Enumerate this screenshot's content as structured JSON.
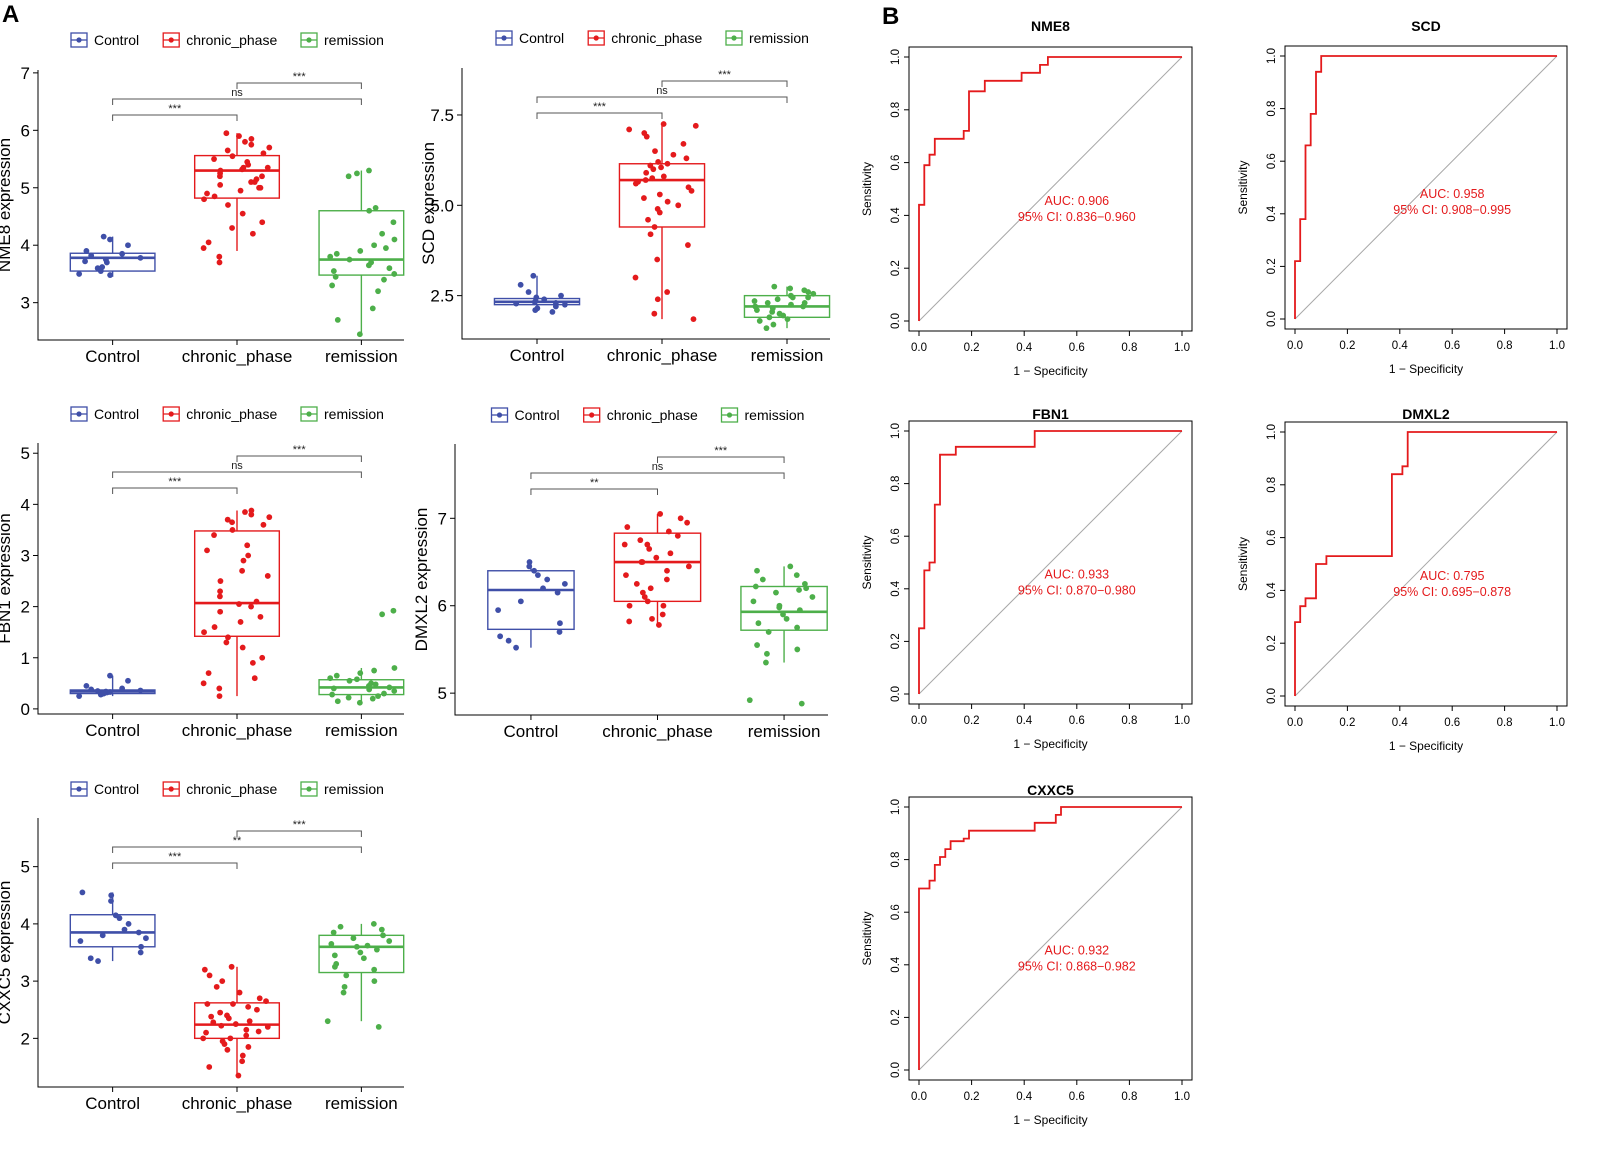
{
  "panel_labels": {
    "a": "A",
    "b": "B"
  },
  "colors": {
    "Control": "#3F4FA8",
    "chronic_phase": "#E41A1C",
    "remission": "#4DAF4A",
    "roc": "#E41A1C",
    "diag": "#A8A8A8",
    "axis": "#000000"
  },
  "chart_data": [
    {
      "type": "box",
      "id": "nme8",
      "ylabel": "NME8 expression",
      "categories": [
        "Control",
        "chronic_phase",
        "remission"
      ],
      "legend": [
        "Control",
        "chronic_phase",
        "remission"
      ],
      "ylim": [
        2.35,
        7.05
      ],
      "yticks": [
        3,
        4,
        5,
        6,
        7
      ],
      "boxes": [
        {
          "q1": 3.55,
          "median": 3.78,
          "q3": 3.86,
          "lo": 3.45,
          "hi": 4.15
        },
        {
          "q1": 4.82,
          "median": 5.3,
          "q3": 5.56,
          "lo": 3.9,
          "hi": 5.95
        },
        {
          "q1": 3.48,
          "median": 3.75,
          "q3": 4.6,
          "lo": 2.45,
          "hi": 5.3
        }
      ],
      "points": [
        [
          3.5,
          3.55,
          3.62,
          3.7,
          3.75,
          3.78,
          3.82,
          3.85,
          3.9,
          4.0,
          4.1,
          4.15,
          3.48,
          3.6,
          3.72
        ],
        [
          3.7,
          3.8,
          3.95,
          4.05,
          4.2,
          4.4,
          4.55,
          4.7,
          4.8,
          4.85,
          4.95,
          5.0,
          5.05,
          5.1,
          5.15,
          5.2,
          5.25,
          5.3,
          5.32,
          5.35,
          5.4,
          5.45,
          5.5,
          5.55,
          5.6,
          5.65,
          5.7,
          5.75,
          5.8,
          5.85,
          5.9,
          5.95,
          4.9,
          5.1,
          5.35,
          4.3,
          5.0,
          5.2
        ],
        [
          2.45,
          2.7,
          2.9,
          3.2,
          3.3,
          3.4,
          3.5,
          3.55,
          3.6,
          3.65,
          3.7,
          3.75,
          3.8,
          3.85,
          3.9,
          4.0,
          4.1,
          4.2,
          4.4,
          4.6,
          4.65,
          5.2,
          5.25,
          5.3,
          3.45,
          3.95
        ]
      ],
      "comparisons": [
        {
          "from": 1,
          "to": 2,
          "label": "***"
        },
        {
          "from": 0,
          "to": 2,
          "label": "ns"
        },
        {
          "from": 0,
          "to": 1,
          "label": "***"
        }
      ]
    },
    {
      "type": "box",
      "id": "scd",
      "ylabel": "SCD expression",
      "categories": [
        "Control",
        "chronic_phase",
        "remission"
      ],
      "legend": [
        "Control",
        "chronic_phase",
        "remission"
      ],
      "ylim": [
        1.3,
        8.8
      ],
      "yticks": [
        2.5,
        5.0,
        7.5
      ],
      "ytick_labels": [
        "2.5",
        "5.0",
        "7.5"
      ],
      "boxes": [
        {
          "q1": 2.25,
          "median": 2.33,
          "q3": 2.42,
          "lo": 2.05,
          "hi": 3.05
        },
        {
          "q1": 4.4,
          "median": 5.7,
          "q3": 6.15,
          "lo": 1.85,
          "hi": 7.25
        },
        {
          "q1": 1.9,
          "median": 2.2,
          "q3": 2.5,
          "lo": 1.6,
          "hi": 2.75
        }
      ],
      "points": [
        [
          2.05,
          2.1,
          2.2,
          2.25,
          2.3,
          2.32,
          2.35,
          2.4,
          2.45,
          2.5,
          2.6,
          2.8,
          3.05,
          2.15,
          2.28
        ],
        [
          1.85,
          2.0,
          2.4,
          2.6,
          3.0,
          3.5,
          3.9,
          4.2,
          4.4,
          4.6,
          4.8,
          5.0,
          5.2,
          5.4,
          5.5,
          5.6,
          5.65,
          5.7,
          5.75,
          5.8,
          5.9,
          6.0,
          6.05,
          6.1,
          6.15,
          6.2,
          6.3,
          6.5,
          6.7,
          6.9,
          7.0,
          7.1,
          7.2,
          7.25,
          5.3,
          4.9,
          6.4,
          5.1
        ],
        [
          1.6,
          1.7,
          1.8,
          1.9,
          1.95,
          2.0,
          2.05,
          2.1,
          2.15,
          2.2,
          2.25,
          2.3,
          2.35,
          2.4,
          2.45,
          2.5,
          2.55,
          2.6,
          2.65,
          2.7,
          2.75,
          2.2,
          2.3,
          1.85,
          2.45
        ]
      ],
      "comparisons": [
        {
          "from": 1,
          "to": 2,
          "label": "***"
        },
        {
          "from": 0,
          "to": 2,
          "label": "ns"
        },
        {
          "from": 0,
          "to": 1,
          "label": "***"
        }
      ]
    },
    {
      "type": "box",
      "id": "fbn1",
      "ylabel": "FBN1 expression",
      "categories": [
        "Control",
        "chronic_phase",
        "remission"
      ],
      "legend": [
        "Control",
        "chronic_phase",
        "remission"
      ],
      "ylim": [
        -0.1,
        5.2
      ],
      "yticks": [
        0,
        1,
        2,
        3,
        4,
        5
      ],
      "boxes": [
        {
          "q1": 0.3,
          "median": 0.34,
          "q3": 0.37,
          "lo": 0.25,
          "hi": 0.65
        },
        {
          "q1": 1.42,
          "median": 2.07,
          "q3": 3.48,
          "lo": 0.25,
          "hi": 3.88
        },
        {
          "q1": 0.28,
          "median": 0.42,
          "q3": 0.57,
          "lo": 0.12,
          "hi": 0.8
        }
      ],
      "points": [
        [
          0.25,
          0.28,
          0.3,
          0.32,
          0.34,
          0.36,
          0.38,
          0.4,
          0.45,
          0.55,
          0.65,
          0.3,
          0.33,
          0.35
        ],
        [
          0.25,
          0.4,
          0.5,
          0.7,
          0.9,
          1.0,
          1.2,
          1.4,
          1.5,
          1.6,
          1.7,
          1.8,
          1.9,
          2.0,
          2.1,
          2.2,
          2.3,
          2.5,
          2.7,
          2.9,
          3.0,
          3.2,
          3.4,
          3.5,
          3.6,
          3.7,
          3.75,
          3.8,
          3.85,
          3.88,
          2.05,
          1.3,
          3.1,
          0.6,
          2.6,
          3.65
        ],
        [
          0.12,
          0.15,
          0.2,
          0.25,
          0.28,
          0.3,
          0.35,
          0.4,
          0.42,
          0.45,
          0.5,
          0.55,
          0.6,
          0.65,
          0.7,
          0.75,
          0.8,
          1.85,
          1.92,
          0.38,
          0.48,
          0.22,
          0.58
        ]
      ],
      "comparisons": [
        {
          "from": 1,
          "to": 2,
          "label": "***"
        },
        {
          "from": 0,
          "to": 2,
          "label": "ns"
        },
        {
          "from": 0,
          "to": 1,
          "label": "***"
        }
      ]
    },
    {
      "type": "box",
      "id": "dmxl2",
      "ylabel": "DMXL2 expression",
      "categories": [
        "Control",
        "chronic_phase",
        "remission"
      ],
      "legend": [
        "Control",
        "chronic_phase",
        "remission"
      ],
      "ylim": [
        4.75,
        7.85
      ],
      "yticks": [
        5,
        6,
        7
      ],
      "boxes": [
        {
          "q1": 5.73,
          "median": 6.18,
          "q3": 6.4,
          "lo": 5.52,
          "hi": 6.52
        },
        {
          "q1": 6.05,
          "median": 6.5,
          "q3": 6.83,
          "lo": 5.78,
          "hi": 7.05
        },
        {
          "q1": 5.72,
          "median": 5.93,
          "q3": 6.22,
          "lo": 5.35,
          "hi": 6.45
        }
      ],
      "points": [
        [
          5.52,
          5.6,
          5.7,
          5.8,
          5.95,
          6.05,
          6.15,
          6.2,
          6.3,
          6.35,
          6.4,
          6.45,
          6.5,
          5.65,
          6.25
        ],
        [
          5.78,
          5.82,
          5.9,
          6.0,
          6.05,
          6.1,
          6.15,
          6.2,
          6.3,
          6.35,
          6.4,
          6.45,
          6.5,
          6.55,
          6.6,
          6.65,
          6.7,
          6.75,
          6.8,
          6.85,
          6.9,
          6.95,
          7.0,
          7.05,
          6.25,
          6.5,
          6.0,
          6.7,
          5.85
        ],
        [
          4.88,
          4.92,
          5.35,
          5.45,
          5.5,
          5.7,
          5.75,
          5.8,
          5.85,
          5.9,
          5.95,
          6.0,
          6.05,
          6.1,
          6.15,
          6.2,
          6.22,
          6.25,
          6.3,
          6.35,
          6.4,
          6.45,
          5.55,
          6.18,
          5.98
        ]
      ],
      "comparisons": [
        {
          "from": 1,
          "to": 2,
          "label": "***"
        },
        {
          "from": 0,
          "to": 2,
          "label": "ns"
        },
        {
          "from": 0,
          "to": 1,
          "label": "**"
        }
      ]
    },
    {
      "type": "box",
      "id": "cxxc5",
      "ylabel": "CXXC5 expression",
      "categories": [
        "Control",
        "chronic_phase",
        "remission"
      ],
      "legend": [
        "Control",
        "chronic_phase",
        "remission"
      ],
      "ylim": [
        1.15,
        5.85
      ],
      "yticks": [
        2,
        3,
        4,
        5
      ],
      "boxes": [
        {
          "q1": 3.6,
          "median": 3.85,
          "q3": 4.16,
          "lo": 3.35,
          "hi": 4.55
        },
        {
          "q1": 2.0,
          "median": 2.24,
          "q3": 2.62,
          "lo": 1.35,
          "hi": 3.25
        },
        {
          "q1": 3.15,
          "median": 3.6,
          "q3": 3.8,
          "lo": 2.3,
          "hi": 4.0
        }
      ],
      "points": [
        [
          3.35,
          3.4,
          3.5,
          3.6,
          3.7,
          3.8,
          3.85,
          3.9,
          4.0,
          4.1,
          4.15,
          4.4,
          4.5,
          4.55,
          3.75
        ],
        [
          1.35,
          1.5,
          1.6,
          1.7,
          1.8,
          1.9,
          1.95,
          2.0,
          2.05,
          2.1,
          2.15,
          2.2,
          2.22,
          2.25,
          2.3,
          2.35,
          2.4,
          2.45,
          2.5,
          2.55,
          2.6,
          2.65,
          2.7,
          2.8,
          2.9,
          3.0,
          3.1,
          3.2,
          3.25,
          2.28,
          2.12,
          1.85,
          2.38,
          2.0,
          2.6
        ],
        [
          2.2,
          2.3,
          2.8,
          2.9,
          3.0,
          3.1,
          3.2,
          3.3,
          3.4,
          3.5,
          3.55,
          3.6,
          3.65,
          3.7,
          3.75,
          3.8,
          3.85,
          3.9,
          3.95,
          4.0,
          3.45,
          3.62,
          3.25
        ]
      ],
      "comparisons": [
        {
          "from": 1,
          "to": 2,
          "label": "***"
        },
        {
          "from": 0,
          "to": 2,
          "label": "**"
        },
        {
          "from": 0,
          "to": 1,
          "label": "***"
        }
      ]
    },
    {
      "type": "line",
      "id": "roc_nme8",
      "title": "NME8",
      "xlabel": "1 − Specificity",
      "ylabel": "Sensitivity",
      "xlim": [
        0,
        1
      ],
      "ylim": [
        0,
        1
      ],
      "ticks": [
        0.0,
        0.2,
        0.4,
        0.6,
        0.8,
        1.0
      ],
      "tick_labels": [
        "0.0",
        "0.2",
        "0.4",
        "0.6",
        "0.8",
        "1.0"
      ],
      "auc_text": "AUC: 0.906",
      "ci_text": "95% CI: 0.836−0.960",
      "label_pos": [
        0.6,
        0.44
      ],
      "x": [
        0,
        0,
        0.02,
        0.02,
        0.04,
        0.04,
        0.06,
        0.06,
        0.17,
        0.17,
        0.19,
        0.19,
        0.25,
        0.25,
        0.39,
        0.39,
        0.46,
        0.46,
        0.49,
        0.49,
        0.52,
        0.52,
        1
      ],
      "y": [
        0,
        0.44,
        0.44,
        0.59,
        0.59,
        0.63,
        0.63,
        0.69,
        0.69,
        0.72,
        0.72,
        0.87,
        0.87,
        0.91,
        0.91,
        0.94,
        0.94,
        0.97,
        0.97,
        1.0,
        1.0,
        1.0,
        1.0
      ]
    },
    {
      "type": "line",
      "id": "roc_scd",
      "title": "SCD",
      "xlabel": "1 − Specificity",
      "ylabel": "Sensitivity",
      "xlim": [
        0,
        1
      ],
      "ylim": [
        0,
        1
      ],
      "ticks": [
        0.0,
        0.2,
        0.4,
        0.6,
        0.8,
        1.0
      ],
      "tick_labels": [
        "0.0",
        "0.2",
        "0.4",
        "0.6",
        "0.8",
        "1.0"
      ],
      "auc_text": "AUC: 0.958",
      "ci_text": "95% CI: 0.908−0.995",
      "label_pos": [
        0.6,
        0.46
      ],
      "x": [
        0,
        0,
        0.02,
        0.02,
        0.04,
        0.04,
        0.06,
        0.06,
        0.08,
        0.08,
        0.1,
        0.1,
        1
      ],
      "y": [
        0,
        0.22,
        0.22,
        0.38,
        0.38,
        0.66,
        0.66,
        0.78,
        0.78,
        0.94,
        0.94,
        1.0,
        1.0
      ]
    },
    {
      "type": "line",
      "id": "roc_fbn1",
      "title": "FBN1",
      "xlabel": "1 − Specificity",
      "ylabel": "Sensitivity",
      "xlim": [
        0,
        1
      ],
      "ylim": [
        0,
        1
      ],
      "ticks": [
        0.0,
        0.2,
        0.4,
        0.6,
        0.8,
        1.0
      ],
      "tick_labels": [
        "0.0",
        "0.2",
        "0.4",
        "0.6",
        "0.8",
        "1.0"
      ],
      "auc_text": "AUC: 0.933",
      "ci_text": "95% CI: 0.870−0.980",
      "label_pos": [
        0.6,
        0.44
      ],
      "x": [
        0,
        0,
        0.02,
        0.02,
        0.04,
        0.04,
        0.06,
        0.06,
        0.08,
        0.08,
        0.1,
        0.1,
        0.14,
        0.14,
        0.44,
        0.44,
        1
      ],
      "y": [
        0,
        0.25,
        0.25,
        0.47,
        0.47,
        0.5,
        0.5,
        0.72,
        0.72,
        0.91,
        0.91,
        0.91,
        0.91,
        0.94,
        0.94,
        1.0,
        1.0
      ]
    },
    {
      "type": "line",
      "id": "roc_dmxl2",
      "title": "DMXL2",
      "xlabel": "1 − Specificity",
      "ylabel": "Sensitivity",
      "xlim": [
        0,
        1
      ],
      "ylim": [
        0,
        1
      ],
      "ticks": [
        0.0,
        0.2,
        0.4,
        0.6,
        0.8,
        1.0
      ],
      "tick_labels": [
        "0.0",
        "0.2",
        "0.4",
        "0.6",
        "0.8",
        "1.0"
      ],
      "auc_text": "AUC: 0.795",
      "ci_text": "95% CI: 0.695−0.878",
      "label_pos": [
        0.6,
        0.44
      ],
      "x": [
        0,
        0,
        0.02,
        0.02,
        0.04,
        0.04,
        0.08,
        0.08,
        0.12,
        0.12,
        0.14,
        0.14,
        0.37,
        0.37,
        0.41,
        0.41,
        0.43,
        0.43,
        1
      ],
      "y": [
        0,
        0.28,
        0.28,
        0.34,
        0.34,
        0.37,
        0.37,
        0.5,
        0.5,
        0.53,
        0.53,
        0.53,
        0.53,
        0.84,
        0.84,
        0.87,
        0.87,
        1.0,
        1.0
      ]
    },
    {
      "type": "line",
      "id": "roc_cxxc5",
      "title": "CXXC5",
      "xlabel": "1 − Specificity",
      "ylabel": "Sensitivity",
      "xlim": [
        0,
        1
      ],
      "ylim": [
        0,
        1
      ],
      "ticks": [
        0.0,
        0.2,
        0.4,
        0.6,
        0.8,
        1.0
      ],
      "tick_labels": [
        "0.0",
        "0.2",
        "0.4",
        "0.6",
        "0.8",
        "1.0"
      ],
      "auc_text": "AUC: 0.932",
      "ci_text": "95% CI: 0.868−0.982",
      "label_pos": [
        0.6,
        0.44
      ],
      "x": [
        0,
        0,
        0.04,
        0.04,
        0.06,
        0.06,
        0.08,
        0.08,
        0.1,
        0.1,
        0.12,
        0.12,
        0.17,
        0.17,
        0.19,
        0.19,
        0.44,
        0.44,
        0.52,
        0.52,
        0.54,
        0.54,
        1
      ],
      "y": [
        0,
        0.69,
        0.69,
        0.72,
        0.72,
        0.78,
        0.78,
        0.81,
        0.81,
        0.84,
        0.84,
        0.87,
        0.87,
        0.88,
        0.88,
        0.91,
        0.91,
        0.94,
        0.94,
        0.97,
        0.97,
        1.0,
        1.0
      ]
    }
  ]
}
